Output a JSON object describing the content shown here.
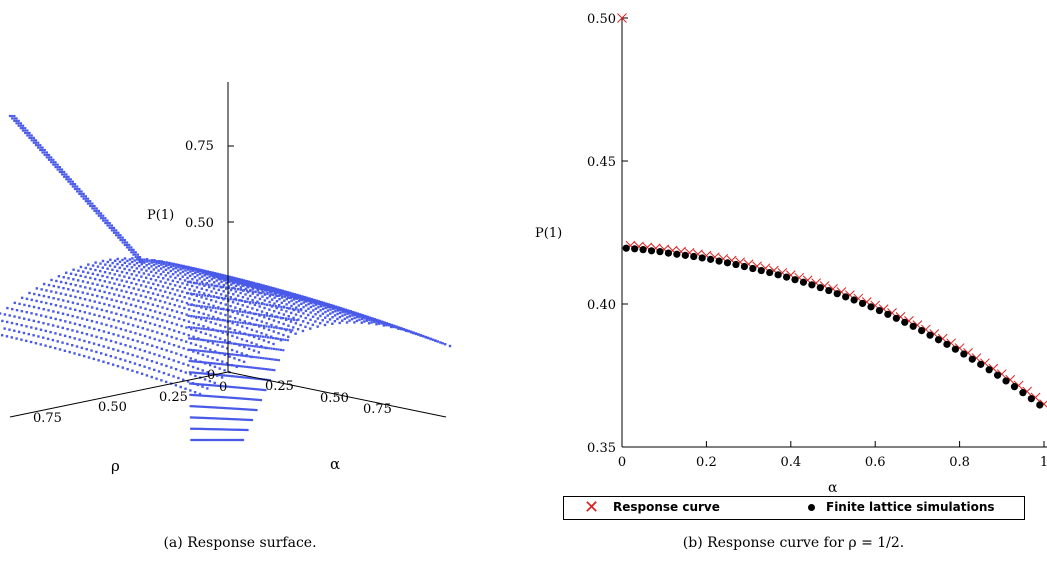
{
  "chart_data": [
    {
      "type": "surface3d",
      "caption": "(a) Response surface.",
      "xlabel": "ρ",
      "ylabel": "α",
      "zlabel": "P(1)",
      "rho_ticks": [
        "0.75",
        "0.50",
        "0.25",
        "0"
      ],
      "alpha_ticks": [
        "0.25",
        "0.50",
        "0.75"
      ],
      "z_ticks": [
        "0.75",
        "0.50"
      ],
      "origin_labels": [
        "0",
        "0"
      ],
      "color": "#4a5ae8"
    },
    {
      "type": "scatter",
      "caption": "(b) Response curve for ρ = 1/2.",
      "xlabel": "α",
      "ylabel": "P(1)",
      "xlim": [
        0,
        1
      ],
      "ylim": [
        0.35,
        0.5
      ],
      "x_ticks": [
        "0",
        "0.2",
        "0.4",
        "0.6",
        "0.8",
        "1"
      ],
      "y_ticks": [
        "0.35",
        "0.40",
        "0.45",
        "0.50"
      ],
      "series": [
        {
          "name": "Response curve",
          "marker": "cross",
          "color": "#e02020",
          "points": [
            [
              0,
              0.5
            ],
            [
              0.02,
              0.4204
            ],
            [
              0.04,
              0.4201
            ],
            [
              0.06,
              0.4198
            ],
            [
              0.08,
              0.4195
            ],
            [
              0.1,
              0.4191
            ],
            [
              0.12,
              0.4187
            ],
            [
              0.14,
              0.4183
            ],
            [
              0.16,
              0.4179
            ],
            [
              0.18,
              0.4174
            ],
            [
              0.2,
              0.4169
            ],
            [
              0.22,
              0.4164
            ],
            [
              0.24,
              0.4158
            ],
            [
              0.26,
              0.4152
            ],
            [
              0.28,
              0.4146
            ],
            [
              0.3,
              0.4139
            ],
            [
              0.32,
              0.4132
            ],
            [
              0.34,
              0.4125
            ],
            [
              0.36,
              0.4117
            ],
            [
              0.38,
              0.4109
            ],
            [
              0.4,
              0.4101
            ],
            [
              0.42,
              0.4092
            ],
            [
              0.44,
              0.4083
            ],
            [
              0.46,
              0.4073
            ],
            [
              0.48,
              0.4063
            ],
            [
              0.5,
              0.4053
            ],
            [
              0.52,
              0.4042
            ],
            [
              0.54,
              0.4031
            ],
            [
              0.56,
              0.4019
            ],
            [
              0.58,
              0.4007
            ],
            [
              0.6,
              0.3995
            ],
            [
              0.62,
              0.3982
            ],
            [
              0.64,
              0.3969
            ],
            [
              0.66,
              0.3955
            ],
            [
              0.68,
              0.3941
            ],
            [
              0.7,
              0.3926
            ],
            [
              0.72,
              0.3911
            ],
            [
              0.74,
              0.3895
            ],
            [
              0.76,
              0.3879
            ],
            [
              0.78,
              0.3863
            ],
            [
              0.8,
              0.3846
            ],
            [
              0.82,
              0.3829
            ],
            [
              0.84,
              0.3811
            ],
            [
              0.86,
              0.3793
            ],
            [
              0.88,
              0.3774
            ],
            [
              0.9,
              0.3755
            ],
            [
              0.92,
              0.3735
            ],
            [
              0.94,
              0.3715
            ],
            [
              0.96,
              0.3694
            ],
            [
              0.98,
              0.3673
            ],
            [
              1.0,
              0.365
            ]
          ]
        },
        {
          "name": "Finite lattice simulations",
          "marker": "dot",
          "color": "#000000",
          "points": [
            [
              0.01,
              0.4195
            ],
            [
              0.03,
              0.4193
            ],
            [
              0.05,
              0.419
            ],
            [
              0.07,
              0.4186
            ],
            [
              0.09,
              0.4183
            ],
            [
              0.11,
              0.4178
            ],
            [
              0.13,
              0.4174
            ],
            [
              0.15,
              0.417
            ],
            [
              0.17,
              0.4166
            ],
            [
              0.19,
              0.4161
            ],
            [
              0.21,
              0.4156
            ],
            [
              0.23,
              0.415
            ],
            [
              0.25,
              0.4144
            ],
            [
              0.27,
              0.4138
            ],
            [
              0.29,
              0.4131
            ],
            [
              0.31,
              0.4124
            ],
            [
              0.33,
              0.4117
            ],
            [
              0.35,
              0.411
            ],
            [
              0.37,
              0.4102
            ],
            [
              0.39,
              0.4094
            ],
            [
              0.41,
              0.4085
            ],
            [
              0.43,
              0.4076
            ],
            [
              0.45,
              0.4067
            ],
            [
              0.47,
              0.4057
            ],
            [
              0.49,
              0.4047
            ],
            [
              0.51,
              0.4036
            ],
            [
              0.53,
              0.4025
            ],
            [
              0.55,
              0.4014
            ],
            [
              0.57,
              0.4002
            ],
            [
              0.59,
              0.399
            ],
            [
              0.61,
              0.3977
            ],
            [
              0.63,
              0.3964
            ],
            [
              0.65,
              0.395
            ],
            [
              0.67,
              0.3936
            ],
            [
              0.69,
              0.3922
            ],
            [
              0.71,
              0.3907
            ],
            [
              0.73,
              0.3891
            ],
            [
              0.75,
              0.3875
            ],
            [
              0.77,
              0.3859
            ],
            [
              0.79,
              0.3842
            ],
            [
              0.81,
              0.3825
            ],
            [
              0.83,
              0.3807
            ],
            [
              0.85,
              0.3789
            ],
            [
              0.87,
              0.377
            ],
            [
              0.89,
              0.3751
            ],
            [
              0.91,
              0.3731
            ],
            [
              0.93,
              0.3711
            ],
            [
              0.95,
              0.369
            ],
            [
              0.97,
              0.3669
            ],
            [
              0.99,
              0.3647
            ]
          ]
        }
      ]
    }
  ]
}
